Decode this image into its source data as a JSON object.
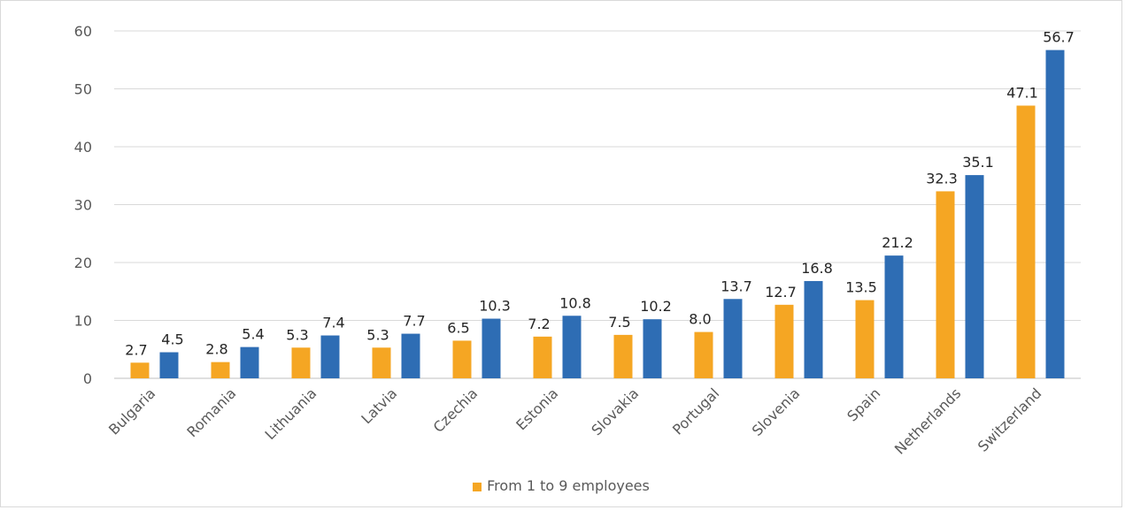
{
  "chart_data": {
    "type": "bar",
    "categories": [
      "Bulgaria",
      "Romania",
      "Lithuania",
      "Latvia",
      "Czechia",
      "Estonia",
      "Slovakia",
      "Portugal",
      "Slovenia",
      "Spain",
      "Netherlands",
      "Switzerland"
    ],
    "series": [
      {
        "name": "From 1 to 9 employees",
        "color": "#F5A623",
        "values": [
          2.7,
          2.8,
          5.3,
          5.3,
          6.5,
          7.2,
          7.5,
          8.0,
          12.7,
          13.5,
          32.3,
          47.1
        ],
        "labels": [
          "2.7",
          "2.8",
          "5.3",
          "5.3",
          "6.5",
          "7.2",
          "7.5",
          "8.0",
          "12.7",
          "13.5",
          "32.3",
          "47.1"
        ]
      },
      {
        "color": "#2E6DB4",
        "values": [
          4.5,
          5.4,
          7.4,
          7.7,
          10.3,
          10.8,
          10.2,
          13.7,
          16.8,
          21.2,
          35.1,
          56.7
        ],
        "labels": [
          "4.5",
          "5.4",
          "7.4",
          "7.7",
          "10.3",
          "10.8",
          "10.2",
          "13.7",
          "16.8",
          "21.2",
          "35.1",
          "56.7"
        ]
      }
    ],
    "yticks": [
      "0",
      "10",
      "20",
      "30",
      "40",
      "50",
      "60"
    ],
    "ylim": [
      0,
      60
    ],
    "grid": true,
    "legend_position": "bottom"
  }
}
